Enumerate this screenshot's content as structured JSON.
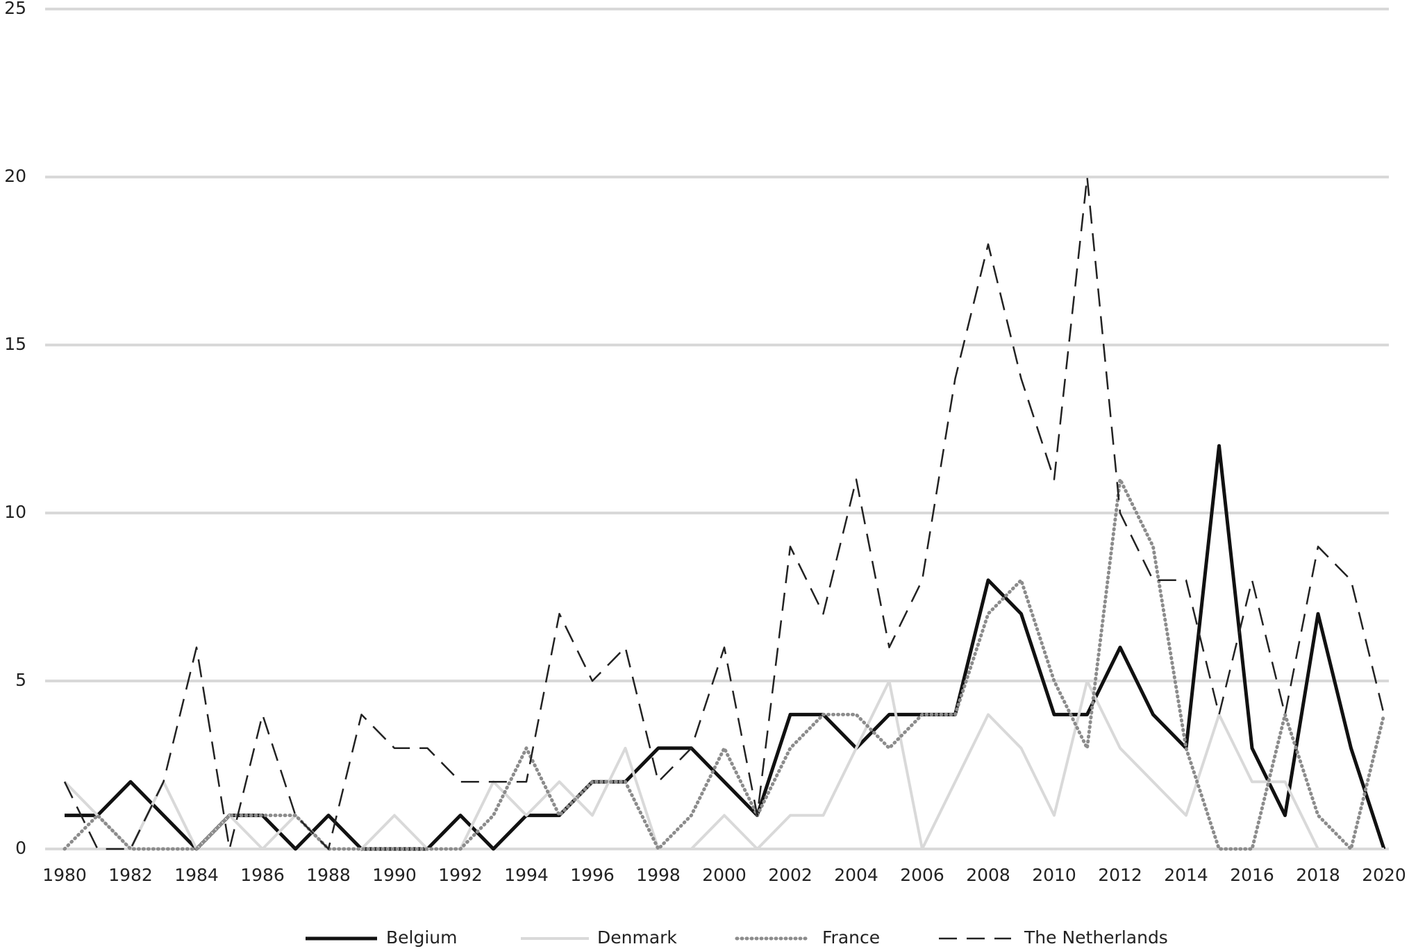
{
  "chart_data": {
    "type": "line",
    "x": [
      1980,
      1981,
      1982,
      1983,
      1984,
      1985,
      1986,
      1987,
      1988,
      1989,
      1990,
      1991,
      1992,
      1993,
      1994,
      1995,
      1996,
      1997,
      1998,
      1999,
      2000,
      2001,
      2002,
      2003,
      2004,
      2005,
      2006,
      2007,
      2008,
      2009,
      2010,
      2011,
      2012,
      2013,
      2014,
      2015,
      2016,
      2017,
      2018,
      2019,
      2020
    ],
    "xlim": [
      1980,
      2020
    ],
    "xticks": [
      1980,
      1982,
      1984,
      1986,
      1988,
      1990,
      1992,
      1994,
      1996,
      1998,
      2000,
      2002,
      2004,
      2006,
      2008,
      2010,
      2012,
      2014,
      2016,
      2018,
      2020
    ],
    "ylim": [
      0,
      25
    ],
    "yticks": [
      0,
      5,
      10,
      15,
      20,
      25
    ],
    "grid": true,
    "legend": "bottom",
    "series": [
      {
        "name": "Belgium",
        "color": "#111111",
        "style": "solid",
        "values": [
          1,
          1,
          2,
          1,
          0,
          1,
          1,
          0,
          1,
          0,
          0,
          0,
          1,
          0,
          1,
          1,
          2,
          2,
          3,
          3,
          2,
          1,
          4,
          4,
          3,
          4,
          4,
          4,
          8,
          7,
          4,
          4,
          6,
          4,
          3,
          12,
          3,
          1,
          7,
          3,
          0
        ]
      },
      {
        "name": "Denmark",
        "color": "#d9d9d9",
        "style": "solid",
        "values": [
          2,
          1,
          0,
          2,
          0,
          1,
          0,
          1,
          0,
          0,
          1,
          0,
          0,
          2,
          1,
          2,
          1,
          3,
          0,
          0,
          1,
          0,
          1,
          1,
          3,
          5,
          0,
          2,
          4,
          3,
          1,
          5,
          3,
          2,
          1,
          4,
          2,
          2,
          0,
          0,
          0
        ]
      },
      {
        "name": "France",
        "color": "#8c8c8c",
        "style": "dotted",
        "values": [
          0,
          1,
          0,
          0,
          0,
          1,
          1,
          1,
          0,
          0,
          0,
          0,
          0,
          1,
          3,
          1,
          2,
          2,
          0,
          1,
          3,
          1,
          3,
          4,
          4,
          3,
          4,
          4,
          7,
          8,
          5,
          3,
          11,
          9,
          3,
          0,
          0,
          4,
          1,
          0,
          4
        ]
      },
      {
        "name": "The Netherlands",
        "color": "#222222",
        "style": "dashed",
        "values": [
          2,
          0,
          0,
          2,
          6,
          0,
          4,
          1,
          0,
          4,
          3,
          3,
          2,
          2,
          2,
          7,
          5,
          6,
          2,
          3,
          6,
          1,
          9,
          7,
          11,
          6,
          8,
          14,
          18,
          14,
          11,
          20,
          10,
          8,
          8,
          4,
          8,
          4,
          9,
          8,
          4
        ]
      }
    ]
  }
}
